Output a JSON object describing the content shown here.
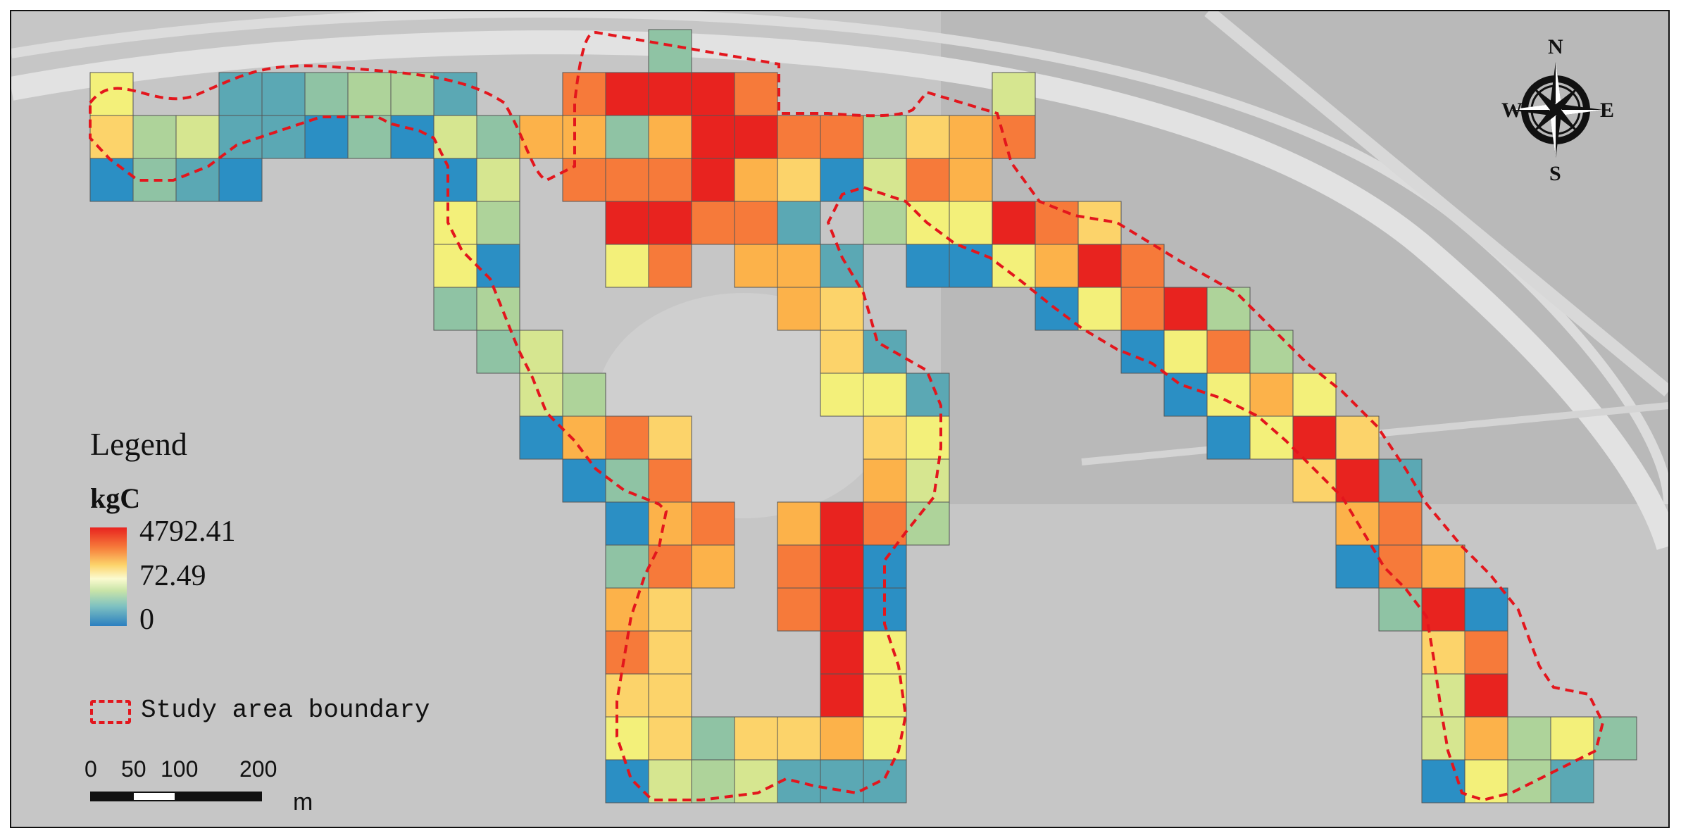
{
  "legend": {
    "title": "Legend",
    "unit": "kgC",
    "max_label": "4792.41",
    "mid_label": "72.49",
    "min_label": "0",
    "boundary_label": "Study area boundary",
    "colors": [
      "#e8231f",
      "#f67a3a",
      "#fcb24a",
      "#fcd36a",
      "#f3f07a",
      "#d6e690",
      "#aed39a",
      "#8fc3a4",
      "#5ba8b4",
      "#2b8fc4"
    ]
  },
  "scale": {
    "ticks": [
      "0",
      "50",
      "100",
      "200"
    ],
    "unit": "m"
  },
  "compass": {
    "n": "N",
    "s": "S",
    "e": "E",
    "w": "W"
  },
  "boundary_color": "#e3161d",
  "grid": {
    "rows": [
      {
        "row": 0,
        "cells": [
          [
            13,
            7
          ]
        ]
      },
      {
        "row": 1,
        "cells": [
          [
            0,
            4
          ],
          [
            3,
            8
          ],
          [
            4,
            8
          ],
          [
            5,
            7
          ],
          [
            6,
            6
          ],
          [
            7,
            6
          ],
          [
            8,
            8
          ],
          [
            11,
            1
          ],
          [
            12,
            0
          ],
          [
            13,
            0
          ],
          [
            14,
            0
          ],
          [
            15,
            1
          ],
          [
            21,
            5
          ]
        ]
      },
      {
        "row": 2,
        "cells": [
          [
            0,
            3
          ],
          [
            1,
            6
          ],
          [
            2,
            5
          ],
          [
            3,
            8
          ],
          [
            4,
            8
          ],
          [
            5,
            9
          ],
          [
            6,
            7
          ],
          [
            7,
            9
          ],
          [
            8,
            5
          ],
          [
            9,
            7
          ],
          [
            10,
            2
          ],
          [
            11,
            2
          ],
          [
            12,
            7
          ],
          [
            13,
            2
          ],
          [
            14,
            0
          ],
          [
            15,
            0
          ],
          [
            16,
            1
          ],
          [
            17,
            1
          ],
          [
            18,
            6
          ],
          [
            19,
            3
          ],
          [
            20,
            2
          ],
          [
            21,
            1
          ]
        ]
      },
      {
        "row": 3,
        "cells": [
          [
            0,
            9
          ],
          [
            1,
            7
          ],
          [
            2,
            8
          ],
          [
            3,
            9
          ],
          [
            8,
            9
          ],
          [
            9,
            5
          ],
          [
            11,
            1
          ],
          [
            12,
            1
          ],
          [
            13,
            1
          ],
          [
            14,
            0
          ],
          [
            15,
            2
          ],
          [
            16,
            3
          ],
          [
            17,
            9
          ],
          [
            18,
            5
          ],
          [
            19,
            1
          ],
          [
            20,
            2
          ]
        ]
      },
      {
        "row": 4,
        "cells": [
          [
            8,
            4
          ],
          [
            9,
            6
          ],
          [
            12,
            0
          ],
          [
            13,
            0
          ],
          [
            14,
            1
          ],
          [
            15,
            1
          ],
          [
            16,
            8
          ],
          [
            18,
            6
          ],
          [
            19,
            4
          ],
          [
            20,
            4
          ],
          [
            21,
            0
          ],
          [
            22,
            1
          ],
          [
            23,
            3
          ]
        ]
      },
      {
        "row": 5,
        "cells": [
          [
            8,
            4
          ],
          [
            9,
            9
          ],
          [
            12,
            4
          ],
          [
            13,
            1
          ],
          [
            15,
            2
          ],
          [
            16,
            2
          ],
          [
            17,
            8
          ],
          [
            19,
            9
          ],
          [
            20,
            9
          ],
          [
            21,
            4
          ],
          [
            22,
            2
          ],
          [
            23,
            0
          ],
          [
            24,
            1
          ]
        ]
      },
      {
        "row": 6,
        "cells": [
          [
            8,
            7
          ],
          [
            9,
            6
          ],
          [
            16,
            2
          ],
          [
            17,
            3
          ],
          [
            22,
            9
          ],
          [
            23,
            4
          ],
          [
            24,
            1
          ],
          [
            25,
            0
          ],
          [
            26,
            6
          ]
        ]
      },
      {
        "row": 7,
        "cells": [
          [
            9,
            7
          ],
          [
            10,
            5
          ],
          [
            17,
            3
          ],
          [
            18,
            8
          ],
          [
            24,
            9
          ],
          [
            25,
            4
          ],
          [
            26,
            1
          ],
          [
            27,
            6
          ]
        ]
      },
      {
        "row": 8,
        "cells": [
          [
            10,
            5
          ],
          [
            11,
            6
          ],
          [
            17,
            4
          ],
          [
            18,
            4
          ],
          [
            19,
            8
          ],
          [
            25,
            9
          ],
          [
            26,
            4
          ],
          [
            27,
            2
          ],
          [
            28,
            4
          ]
        ]
      },
      {
        "row": 9,
        "cells": [
          [
            10,
            9
          ],
          [
            11,
            2
          ],
          [
            12,
            1
          ],
          [
            13,
            3
          ],
          [
            18,
            3
          ],
          [
            19,
            4
          ],
          [
            26,
            9
          ],
          [
            27,
            4
          ],
          [
            28,
            0
          ],
          [
            29,
            3
          ]
        ]
      },
      {
        "row": 10,
        "cells": [
          [
            11,
            9
          ],
          [
            12,
            7
          ],
          [
            13,
            1
          ],
          [
            18,
            2
          ],
          [
            19,
            5
          ],
          [
            28,
            3
          ],
          [
            29,
            0
          ],
          [
            30,
            8
          ]
        ]
      },
      {
        "row": 11,
        "cells": [
          [
            12,
            9
          ],
          [
            13,
            2
          ],
          [
            14,
            1
          ],
          [
            16,
            2
          ],
          [
            17,
            0
          ],
          [
            18,
            1
          ],
          [
            19,
            6
          ],
          [
            29,
            2
          ],
          [
            30,
            1
          ]
        ]
      },
      {
        "row": 12,
        "cells": [
          [
            12,
            7
          ],
          [
            13,
            1
          ],
          [
            14,
            2
          ],
          [
            16,
            1
          ],
          [
            17,
            0
          ],
          [
            18,
            9
          ],
          [
            29,
            9
          ],
          [
            30,
            1
          ],
          [
            31,
            2
          ]
        ]
      },
      {
        "row": 13,
        "cells": [
          [
            12,
            2
          ],
          [
            13,
            3
          ],
          [
            16,
            1
          ],
          [
            17,
            0
          ],
          [
            18,
            9
          ],
          [
            30,
            7
          ],
          [
            31,
            0
          ],
          [
            32,
            9
          ]
        ]
      },
      {
        "row": 14,
        "cells": [
          [
            12,
            1
          ],
          [
            13,
            3
          ],
          [
            17,
            0
          ],
          [
            18,
            4
          ],
          [
            31,
            3
          ],
          [
            32,
            1
          ]
        ]
      },
      {
        "row": 15,
        "cells": [
          [
            12,
            3
          ],
          [
            13,
            3
          ],
          [
            17,
            0
          ],
          [
            18,
            4
          ],
          [
            31,
            5
          ],
          [
            32,
            0
          ]
        ]
      },
      {
        "row": 16,
        "cells": [
          [
            12,
            4
          ],
          [
            13,
            3
          ],
          [
            14,
            7
          ],
          [
            15,
            3
          ],
          [
            16,
            3
          ],
          [
            17,
            2
          ],
          [
            18,
            4
          ],
          [
            31,
            5
          ],
          [
            32,
            2
          ],
          [
            33,
            6
          ],
          [
            34,
            4
          ],
          [
            35,
            7
          ]
        ]
      },
      {
        "row": 17,
        "cells": [
          [
            12,
            9
          ],
          [
            13,
            5
          ],
          [
            14,
            6
          ],
          [
            15,
            5
          ],
          [
            16,
            8
          ],
          [
            17,
            8
          ],
          [
            18,
            8
          ],
          [
            31,
            9
          ],
          [
            32,
            4
          ],
          [
            33,
            6
          ],
          [
            34,
            8
          ]
        ]
      }
    ]
  }
}
